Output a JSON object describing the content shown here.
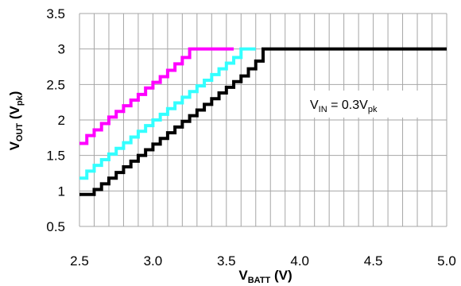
{
  "chart_data": {
    "type": "line",
    "title": "",
    "xlabel": {
      "main": "V",
      "sub": "BATT",
      "unit": " (V)"
    },
    "ylabel": {
      "main": "V",
      "sub": "OUT",
      "unit_open": " (V",
      "unit_sub": "pk",
      "unit_close": ")"
    },
    "xlim": [
      2.5,
      5.0
    ],
    "ylim": [
      0.5,
      3.5
    ],
    "xticks": [
      2.5,
      3.0,
      3.5,
      4.0,
      4.5,
      5.0
    ],
    "xtick_labels": [
      "2.5",
      "3.0",
      "3.5",
      "4.0",
      "4.5",
      "5.0"
    ],
    "yticks": [
      0.5,
      1.0,
      1.5,
      2.0,
      2.5,
      3.0,
      3.5
    ],
    "ytick_labels": [
      "0.5",
      "1",
      "1.5",
      "2",
      "2.5",
      "3",
      "3.5"
    ],
    "grid": {
      "x_step": 0.1,
      "y_step": 0.5
    },
    "annotation": {
      "main": "V",
      "sub1": "IN",
      "mid": " = 0.3V",
      "sub2": "pk"
    },
    "series": [
      {
        "color": "#ff00ff",
        "x": [
          2.5,
          2.55,
          2.6,
          2.65,
          2.7,
          2.75,
          2.8,
          2.85,
          2.9,
          2.95,
          3.0,
          3.05,
          3.1,
          3.15,
          3.2,
          3.25,
          3.55
        ],
        "y": [
          1.67,
          1.78,
          1.86,
          1.95,
          2.04,
          2.12,
          2.2,
          2.28,
          2.36,
          2.45,
          2.53,
          2.61,
          2.7,
          2.79,
          2.88,
          3.0,
          3.0
        ]
      },
      {
        "color": "#33ffff",
        "x": [
          2.5,
          2.55,
          2.6,
          2.65,
          2.7,
          2.75,
          2.8,
          2.85,
          2.9,
          2.95,
          3.0,
          3.05,
          3.1,
          3.15,
          3.2,
          3.25,
          3.3,
          3.35,
          3.4,
          3.45,
          3.5,
          3.55,
          3.6,
          3.7
        ],
        "y": [
          1.18,
          1.28,
          1.36,
          1.44,
          1.52,
          1.6,
          1.68,
          1.76,
          1.84,
          1.92,
          2.0,
          2.08,
          2.16,
          2.24,
          2.32,
          2.4,
          2.48,
          2.56,
          2.64,
          2.72,
          2.8,
          2.88,
          3.0,
          3.0
        ]
      },
      {
        "color": "#000000",
        "x": [
          2.5,
          2.6,
          2.65,
          2.7,
          2.75,
          2.8,
          2.85,
          2.9,
          2.95,
          3.0,
          3.05,
          3.1,
          3.15,
          3.2,
          3.25,
          3.3,
          3.35,
          3.4,
          3.45,
          3.5,
          3.55,
          3.6,
          3.65,
          3.7,
          3.75,
          5.0
        ],
        "y": [
          0.95,
          1.02,
          1.1,
          1.18,
          1.26,
          1.34,
          1.42,
          1.5,
          1.58,
          1.66,
          1.74,
          1.82,
          1.9,
          1.98,
          2.06,
          2.14,
          2.22,
          2.3,
          2.38,
          2.46,
          2.54,
          2.62,
          2.72,
          2.83,
          3.0,
          3.0
        ]
      }
    ]
  }
}
